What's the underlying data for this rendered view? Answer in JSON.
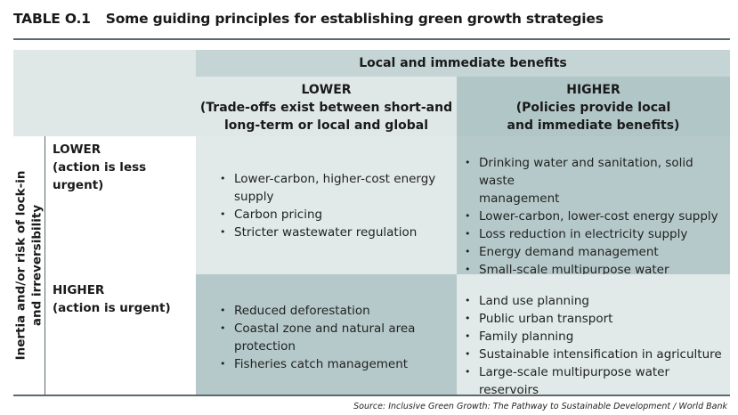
{
  "table": {
    "number": "TABLE O.1",
    "title": "Some guiding principles for establishing green growth strategies",
    "col_group_header": "Local and immediate benefits",
    "columns": [
      {
        "head": "LOWER",
        "sub1": "(Trade-offs exist between short-and",
        "sub2": "long-term or local and global benefits)"
      },
      {
        "head": "HIGHER",
        "sub1": "(Policies provide local",
        "sub2": "and immediate benefits)"
      }
    ],
    "row_group_label_1": "Inertia and/or risk of lock-in",
    "row_group_label_2": "and irreversibility",
    "rows": [
      {
        "head": "LOWER",
        "sub": "(action is less urgent)",
        "cells": [
          [
            "Lower-carbon, higher-cost energy",
            "supply",
            "Carbon pricing",
            "Stricter wastewater regulation"
          ],
          [
            "Drinking water and sanitation, solid waste",
            "management",
            "Lower-carbon, lower-cost energy supply",
            "Loss reduction in electricity supply",
            "Energy demand management",
            "Small-scale multipurpose water reservoirs"
          ]
        ]
      },
      {
        "head": "HIGHER",
        "sub": "(action is urgent)",
        "cells": [
          [
            "Reduced deforestation",
            "Coastal zone and natural area",
            "protection",
            "Fisheries catch management"
          ],
          [
            "Land use planning",
            "Public urban transport",
            "Family planning",
            "Sustainable intensification in agriculture",
            "Large-scale multipurpose water reservoirs"
          ]
        ]
      }
    ],
    "source": "Source: Inclusive Green Growth: The Pathway to Sustainable Development / World Bank"
  }
}
